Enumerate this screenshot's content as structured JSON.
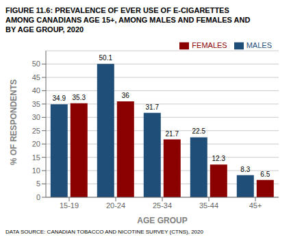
{
  "chart_data": {
    "type": "bar",
    "title": [
      "FIGURE 11.6: PREVALENCE OF EVER USE OF E-CIGARETTES",
      "AMONG CANADIANS AGE 15+, AMONG MALES AND FEMALES AND",
      "BY AGE GROUP, 2020"
    ],
    "annotations": [
      "DATA SOURCE: CANADIAN TOBACCO AND NICOTINE SURVEY (CTNS), 2020"
    ],
    "xlabel": "AGE GROUP",
    "ylabel": "% OF RESPONDENTS",
    "categories": [
      "15-19",
      "20-24",
      "25-34",
      "35-44",
      "45+"
    ],
    "series": [
      {
        "name": "MALES",
        "color": "#1F4E79",
        "values": [
          34.9,
          50.1,
          31.7,
          22.5,
          8.3
        ]
      },
      {
        "name": "FEMALES",
        "color": "#8B0000",
        "values": [
          35.3,
          36.0,
          21.7,
          12.3,
          6.5
        ]
      }
    ],
    "ylim": [
      0,
      55
    ],
    "yticks": [
      0,
      5,
      10,
      15,
      20,
      25,
      30,
      35,
      40,
      45,
      50
    ],
    "grid": true,
    "legend": "upper right",
    "data_labels": true
  }
}
